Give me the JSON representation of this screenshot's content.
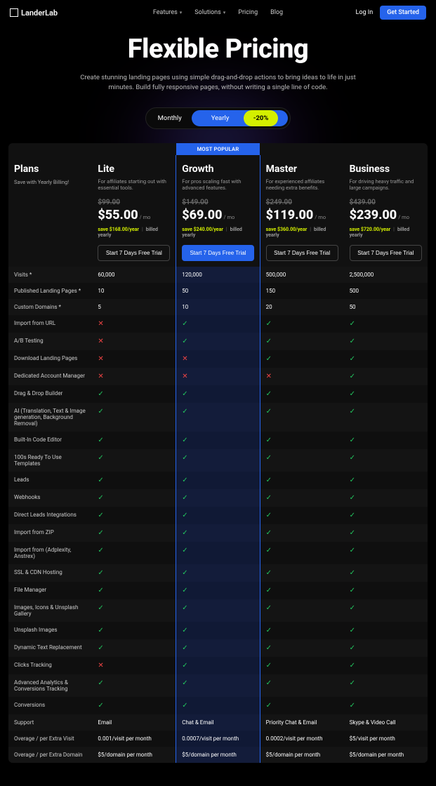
{
  "brand": "LanderLab",
  "nav": {
    "features": "Features",
    "solutions": "Solutions",
    "pricing": "Pricing",
    "blog": "Blog"
  },
  "auth": {
    "login": "Log In",
    "cta": "Get Started"
  },
  "hero": {
    "title": "Flexible Pricing",
    "sub": "Create stunning landing pages using simple drag-and-drop actions to bring ideas to life in just minutes. Build fully responsive pages, without writing a single line of code."
  },
  "toggle": {
    "monthly": "Monthly",
    "yearly": "Yearly",
    "discount": "-20%"
  },
  "popular": "MOST POPULAR",
  "plans_header": {
    "title": "Plans",
    "sub": "Save with Yearly Billing!"
  },
  "plans": [
    {
      "name": "Lite",
      "desc": "For affiliates starting out with essential tools.",
      "old": "$99.00",
      "price": "$55.00",
      "per": "/ mo",
      "save": "save $168.00/year",
      "billed": "billed yearly",
      "cta": "Start 7 Days Free Trial",
      "primary": false
    },
    {
      "name": "Growth",
      "desc": "For pros scaling fast with advanced features.",
      "old": "$149.00",
      "price": "$69.00",
      "per": "/ mo",
      "save": "save $240.00/year",
      "billed": "billed yearly",
      "cta": "Start 7 Days Free Trial",
      "primary": true
    },
    {
      "name": "Master",
      "desc": "For experienced affiliates needing extra benefits.",
      "old": "$249.00",
      "price": "$119.00",
      "per": "/ mo",
      "save": "save $360.00/year",
      "billed": "billed yearly",
      "cta": "Start 7 Days Free Trial",
      "primary": false
    },
    {
      "name": "Business",
      "desc": "For driving heavy traffic and large campaigns.",
      "old": "$439.00",
      "price": "$239.00",
      "per": "/ mo",
      "save": "save $720.00/year",
      "billed": "billed yearly",
      "cta": "Start 7 Days Free Trial",
      "primary": false
    }
  ],
  "features": [
    {
      "label": "Visits *",
      "v": [
        "60,000",
        "120,000",
        "500,000",
        "2,500,000"
      ]
    },
    {
      "label": "Published Landing Pages *",
      "v": [
        "10",
        "50",
        "150",
        "500"
      ]
    },
    {
      "label": "Custom Domains *",
      "v": [
        "5",
        "10",
        "20",
        "50"
      ]
    },
    {
      "label": "Import from URL",
      "v": [
        "x",
        "c",
        "c",
        "c"
      ]
    },
    {
      "label": "A/B Testing",
      "v": [
        "x",
        "c",
        "c",
        "c"
      ]
    },
    {
      "label": "Download Landing Pages",
      "v": [
        "x",
        "x",
        "c",
        "c"
      ]
    },
    {
      "label": "Dedicated Account Manager",
      "v": [
        "x",
        "x",
        "x",
        "c"
      ]
    },
    {
      "label": "Drag & Drop Builder",
      "v": [
        "c",
        "c",
        "c",
        "c"
      ]
    },
    {
      "label": "AI (Translation, Text & Image generation, Background Removal)",
      "v": [
        "c",
        "c",
        "c",
        "c"
      ]
    },
    {
      "label": "Built-In Code Editor",
      "v": [
        "c",
        "c",
        "c",
        "c"
      ]
    },
    {
      "label": "100s Ready To Use Templates",
      "v": [
        "c",
        "c",
        "c",
        "c"
      ]
    },
    {
      "label": "Leads",
      "v": [
        "c",
        "c",
        "c",
        "c"
      ]
    },
    {
      "label": "Webhooks",
      "v": [
        "c",
        "c",
        "c",
        "c"
      ]
    },
    {
      "label": "Direct Leads Integrations",
      "v": [
        "c",
        "c",
        "c",
        "c"
      ]
    },
    {
      "label": "Import from ZIP",
      "v": [
        "c",
        "c",
        "c",
        "c"
      ]
    },
    {
      "label": "Import from (Adplexity, Anstrex)",
      "v": [
        "c",
        "c",
        "c",
        "c"
      ]
    },
    {
      "label": "SSL & CDN Hosting",
      "v": [
        "c",
        "c",
        "c",
        "c"
      ]
    },
    {
      "label": "File Manager",
      "v": [
        "c",
        "c",
        "c",
        "c"
      ]
    },
    {
      "label": "Images, Icons & Unsplash Gallery",
      "v": [
        "c",
        "c",
        "c",
        "c"
      ]
    },
    {
      "label": "Unsplash Images",
      "v": [
        "c",
        "c",
        "c",
        "c"
      ]
    },
    {
      "label": "Dynamic Text Replacement",
      "v": [
        "c",
        "c",
        "c",
        "c"
      ]
    },
    {
      "label": "Clicks Tracking",
      "v": [
        "x",
        "c",
        "c",
        "c"
      ]
    },
    {
      "label": "Advanced Analytics & Conversions Tracking",
      "v": [
        "c",
        "c",
        "c",
        "c"
      ]
    },
    {
      "label": "Conversions",
      "v": [
        "c",
        "c",
        "c",
        "c"
      ]
    },
    {
      "label": "Support",
      "v": [
        "Email",
        "Chat & Email",
        "Priority Chat & Email",
        "Skype & Video Call"
      ]
    },
    {
      "label": "Overage / per Extra Visit",
      "v": [
        "0.001/visit per month",
        "0.0007/visit per month",
        "0.0002/visit per month",
        "$5/visit per month"
      ]
    },
    {
      "label": "Overage / per Extra Domain",
      "v": [
        "$5/domain per month",
        "$5/domain per month",
        "$5/domain per month",
        "$5/domain per month"
      ]
    }
  ]
}
